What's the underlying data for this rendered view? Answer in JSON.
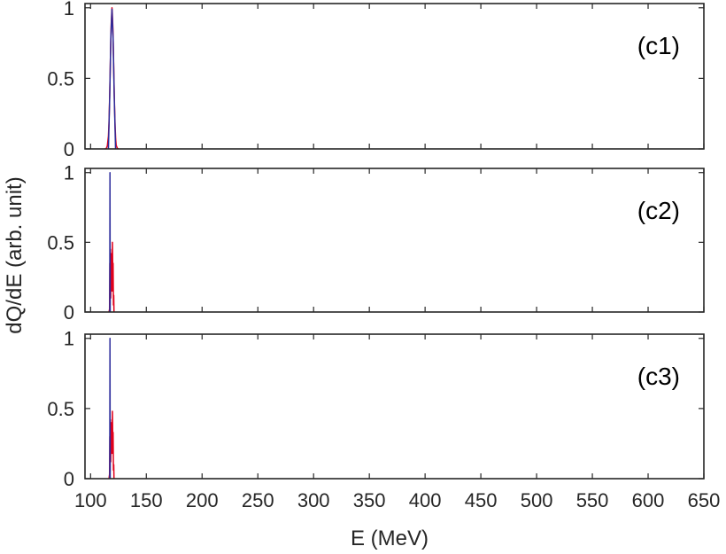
{
  "chart_data": {
    "type": "line",
    "xlabel": "E (MeV)",
    "ylabel": "dQ/dE (arb. unit)",
    "xlim": [
      95,
      650
    ],
    "ylim": [
      0,
      1.03
    ],
    "x_ticks": [
      100,
      150,
      200,
      250,
      300,
      350,
      400,
      450,
      500,
      550,
      600,
      650
    ],
    "y_ticks": [
      0,
      0.5,
      1
    ],
    "colors": {
      "primary": "#e0001b",
      "secondary": "#2c2c9c",
      "axis": "#262626"
    },
    "panels": [
      {
        "label": "(c1)",
        "series": [
          {
            "color": "#e0001b",
            "points": [
              [
                113,
                0
              ],
              [
                114,
                0.002
              ],
              [
                115,
                0.02
              ],
              [
                116,
                0.09
              ],
              [
                116.5,
                0.18
              ],
              [
                117,
                0.33
              ],
              [
                117.5,
                0.52
              ],
              [
                118,
                0.72
              ],
              [
                118.5,
                0.88
              ],
              [
                119,
                0.97
              ],
              [
                119.2,
                1.0
              ],
              [
                119.5,
                0.96
              ],
              [
                120,
                0.86
              ],
              [
                120.5,
                0.68
              ],
              [
                121,
                0.48
              ],
              [
                121.5,
                0.3
              ],
              [
                122,
                0.16
              ],
              [
                122.5,
                0.07
              ],
              [
                123,
                0.025
              ],
              [
                124,
                0.005
              ],
              [
                125,
                0
              ]
            ]
          },
          {
            "color": "#2c2c9c",
            "points": [
              [
                116,
                0.0
              ],
              [
                117.2,
                0.38
              ],
              [
                118.2,
                0.8
              ],
              [
                119.2,
                0.99
              ],
              [
                120.2,
                0.78
              ],
              [
                121.2,
                0.38
              ],
              [
                122.4,
                0.0
              ]
            ]
          }
        ]
      },
      {
        "label": "(c2)",
        "series": [
          {
            "color": "#e0001b",
            "points": [
              [
                116.5,
                0
              ],
              [
                117,
                0.02
              ],
              [
                117.3,
                0.35
              ],
              [
                117.5,
                0.05
              ],
              [
                117.8,
                0.45
              ],
              [
                118.1,
                0.1
              ],
              [
                118.4,
                0.38
              ],
              [
                118.7,
                0.2
              ],
              [
                119.0,
                0.42
              ],
              [
                119.3,
                0.15
              ],
              [
                119.6,
                0.5
              ],
              [
                119.9,
                0.3
              ],
              [
                120.2,
                0.35
              ],
              [
                120.5,
                0.05
              ],
              [
                120.8,
                0.12
              ],
              [
                121,
                0
              ]
            ]
          },
          {
            "color": "#2c2c9c",
            "points": [
              [
                117.2,
                0
              ],
              [
                117.4,
                1.0
              ],
              [
                117.6,
                0
              ]
            ]
          }
        ]
      },
      {
        "label": "(c3)",
        "series": [
          {
            "color": "#e0001b",
            "points": [
              [
                116.5,
                0
              ],
              [
                117,
                0.03
              ],
              [
                117.3,
                0.3
              ],
              [
                117.5,
                0.05
              ],
              [
                117.8,
                0.42
              ],
              [
                118.1,
                0.12
              ],
              [
                118.4,
                0.35
              ],
              [
                118.7,
                0.22
              ],
              [
                119.0,
                0.4
              ],
              [
                119.3,
                0.18
              ],
              [
                119.6,
                0.48
              ],
              [
                119.9,
                0.28
              ],
              [
                120.2,
                0.33
              ],
              [
                120.5,
                0.06
              ],
              [
                120.8,
                0.1
              ],
              [
                121,
                0
              ]
            ]
          },
          {
            "color": "#2c2c9c",
            "points": [
              [
                117.2,
                0
              ],
              [
                117.4,
                1.0
              ],
              [
                117.6,
                0
              ]
            ]
          }
        ]
      }
    ]
  }
}
